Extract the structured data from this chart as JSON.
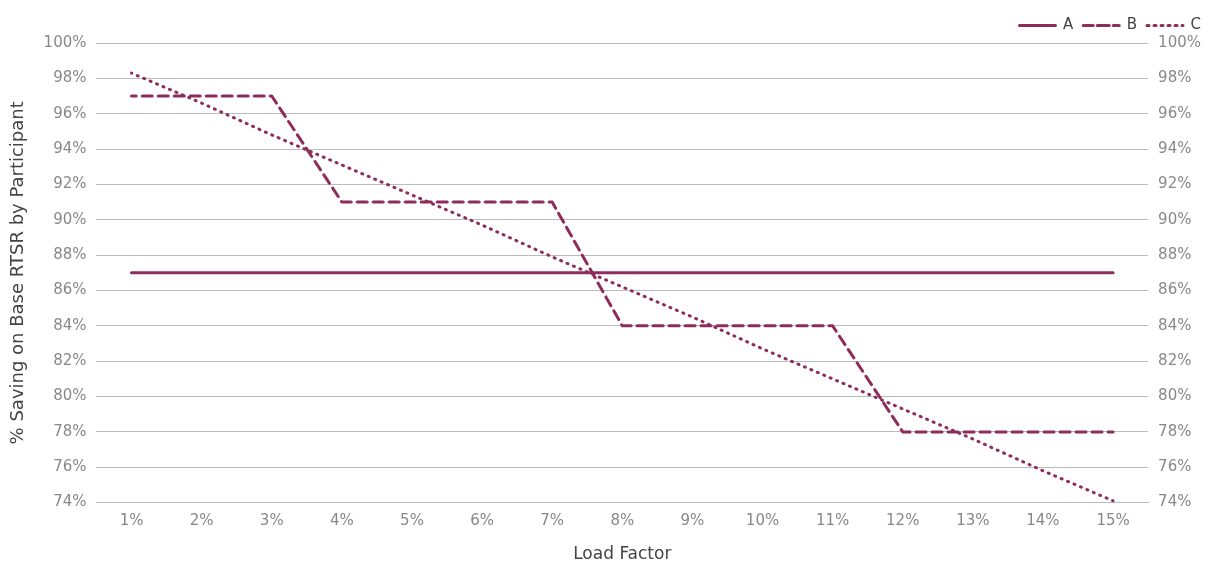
{
  "chart_data": {
    "type": "line",
    "xlabel": "Load Factor",
    "ylabel": "% Saving on Base RTSR by Participant",
    "categories": [
      "1%",
      "2%",
      "3%",
      "4%",
      "5%",
      "6%",
      "7%",
      "8%",
      "9%",
      "10%",
      "11%",
      "12%",
      "13%",
      "14%",
      "15%"
    ],
    "series": [
      {
        "name": "A",
        "color": "#8e2c5c",
        "line_style": "solid",
        "values": [
          87,
          87,
          87,
          87,
          87,
          87,
          87,
          87,
          87,
          87,
          87,
          87,
          87,
          87,
          87
        ]
      },
      {
        "name": "B",
        "color": "#8e2c5c",
        "line_style": "dashed",
        "values": [
          97,
          97,
          97,
          91,
          91,
          91,
          91,
          84,
          84,
          84,
          84,
          78,
          78,
          78,
          78
        ]
      },
      {
        "name": "C",
        "color": "#8e2c5c",
        "line_style": "dotted",
        "values": [
          98.3,
          96.6,
          94.8,
          93.1,
          91.4,
          89.7,
          87.9,
          86.2,
          84.5,
          82.7,
          81.0,
          79.3,
          77.6,
          75.8,
          74.1
        ]
      }
    ],
    "ylim": [
      74,
      100
    ],
    "yticks": [
      {
        "value": 74,
        "label": "74%"
      },
      {
        "value": 76,
        "label": "76%"
      },
      {
        "value": 78,
        "label": "78%"
      },
      {
        "value": 80,
        "label": "80%"
      },
      {
        "value": 82,
        "label": "82%"
      },
      {
        "value": 84,
        "label": "84%"
      },
      {
        "value": 86,
        "label": "86%"
      },
      {
        "value": 88,
        "label": "88%"
      },
      {
        "value": 90,
        "label": "90%"
      },
      {
        "value": 92,
        "label": "92%"
      },
      {
        "value": 94,
        "label": "94%"
      },
      {
        "value": 96,
        "label": "96%"
      },
      {
        "value": 98,
        "label": "98%"
      },
      {
        "value": 100,
        "label": "100%"
      }
    ],
    "y2lim": [
      74,
      100
    ],
    "y2ticks": [
      {
        "value": 74,
        "label": "74%"
      },
      {
        "value": 76,
        "label": "76%"
      },
      {
        "value": 78,
        "label": "78%"
      },
      {
        "value": 80,
        "label": "80%"
      },
      {
        "value": 82,
        "label": "82%"
      },
      {
        "value": 84,
        "label": "84%"
      },
      {
        "value": 86,
        "label": "86%"
      },
      {
        "value": 88,
        "label": "88%"
      },
      {
        "value": 90,
        "label": "90%"
      },
      {
        "value": 92,
        "label": "92%"
      },
      {
        "value": 94,
        "label": "94%"
      },
      {
        "value": 96,
        "label": "96%"
      },
      {
        "value": 98,
        "label": "98%"
      },
      {
        "value": 100,
        "label": "100%"
      }
    ],
    "grid": "y",
    "legend": "top right",
    "marker": "none"
  }
}
